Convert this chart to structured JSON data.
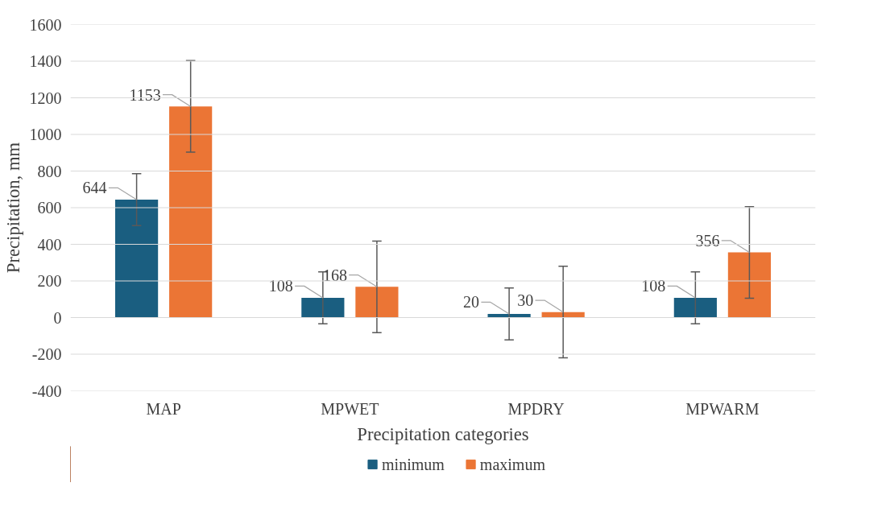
{
  "chart_data": {
    "type": "bar",
    "xlabel": "Precipitation categories",
    "ylabel": "Precipitation, mm",
    "categories": [
      "MAP",
      "MPWET",
      "MPDRY",
      "MPWARM"
    ],
    "series": [
      {
        "name": "minimum",
        "color": "#1a5e80",
        "values": [
          644,
          108,
          20,
          108
        ],
        "errors": [
          142,
          142,
          142,
          142
        ]
      },
      {
        "name": "maximum",
        "color": "#eb7535",
        "values": [
          1153,
          168,
          30,
          356
        ],
        "errors": [
          250,
          250,
          250,
          250
        ]
      }
    ],
    "ylim": [
      -400,
      1600
    ],
    "yticks": [
      -400,
      -200,
      0,
      200,
      400,
      600,
      800,
      1000,
      1200,
      1400,
      1600
    ],
    "grid": "y",
    "legend": "bottom",
    "data_labels": true
  }
}
